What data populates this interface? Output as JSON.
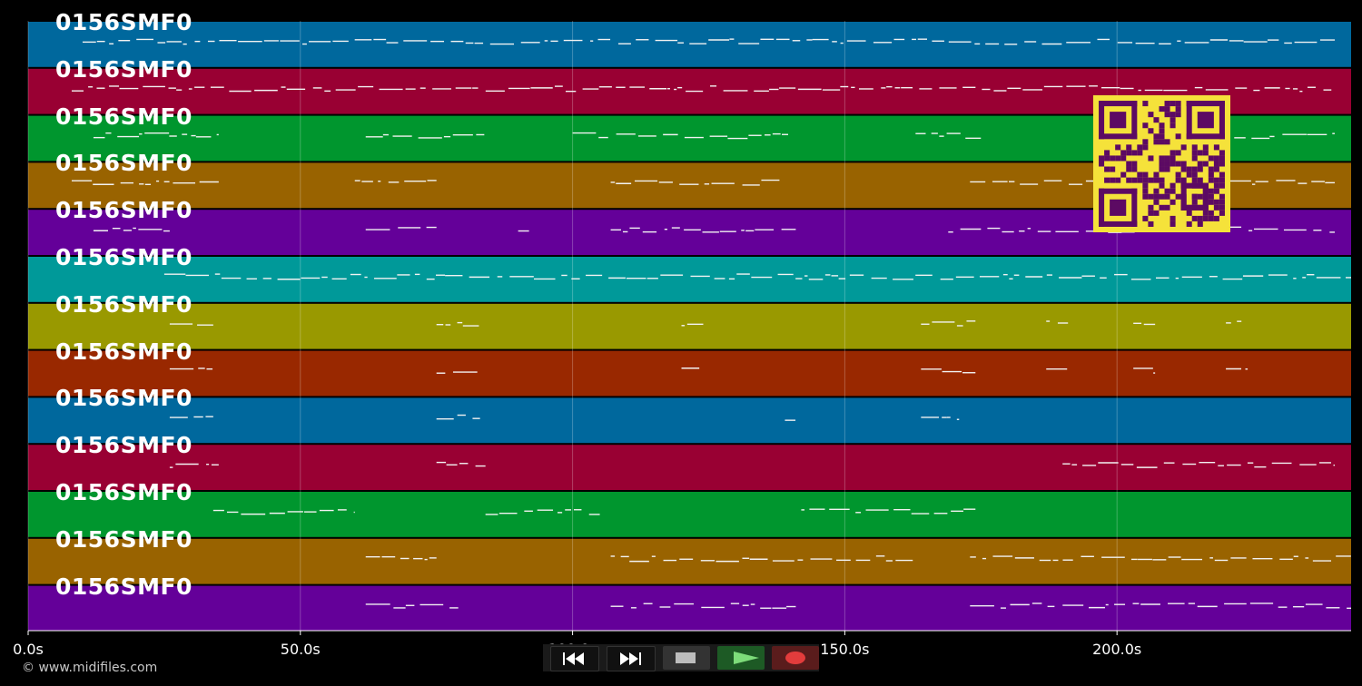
{
  "lanes": [
    {
      "label": "0156SMF0",
      "color": "#00689d"
    },
    {
      "label": "0156SMF0",
      "color": "#990033"
    },
    {
      "label": "0156SMF0",
      "color": "#00962e"
    },
    {
      "label": "0156SMF0",
      "color": "#996300"
    },
    {
      "label": "0156SMF0",
      "color": "#640099"
    },
    {
      "label": "0156SMF0",
      "color": "#009999"
    },
    {
      "label": "0156SMF0",
      "color": "#999900"
    },
    {
      "label": "0156SMF0",
      "color": "#992800"
    },
    {
      "label": "0156SMF0",
      "color": "#00689d"
    },
    {
      "label": "0156SMF0",
      "color": "#990033"
    },
    {
      "label": "0156SMF0",
      "color": "#00962e"
    },
    {
      "label": "0156SMF0",
      "color": "#996300"
    },
    {
      "label": "0156SMF0",
      "color": "#640099"
    }
  ],
  "time_axis": {
    "unit": "s",
    "range": [
      0,
      243
    ],
    "ticks": [
      {
        "value": 0,
        "label": "0.0s"
      },
      {
        "value": 50,
        "label": "50.0s"
      },
      {
        "value": 100,
        "label": "100.0s"
      },
      {
        "value": 150,
        "label": "150.0s"
      },
      {
        "value": 200,
        "label": "200.0s"
      }
    ]
  },
  "credit": "© www.midifiles.com",
  "transport": {
    "buttons": [
      {
        "name": "rewind-button",
        "icon": "rewind-icon"
      },
      {
        "name": "fast-forward-button",
        "icon": "fast-forward-icon"
      },
      {
        "name": "stop-button",
        "icon": "stop-icon"
      },
      {
        "name": "play-button",
        "icon": "play-icon"
      },
      {
        "name": "record-button",
        "icon": "record-icon"
      }
    ]
  },
  "overlay": {
    "name": "qr-code",
    "icon": "qr-code-icon",
    "fg": "#5c0a63",
    "bg": "#f5e23a"
  }
}
